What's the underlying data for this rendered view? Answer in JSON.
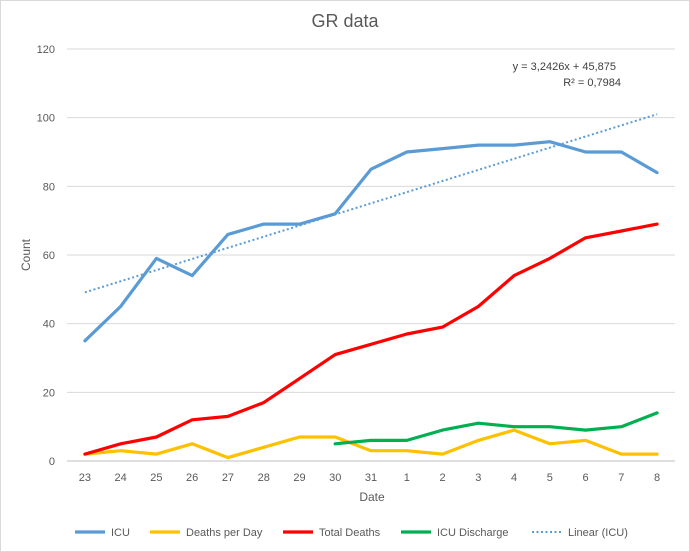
{
  "chart_data": {
    "type": "line",
    "title": "GR data",
    "xlabel": "Date",
    "ylabel": "Count",
    "categories": [
      "23",
      "24",
      "25",
      "26",
      "27",
      "28",
      "29",
      "30",
      "31",
      "1",
      "2",
      "3",
      "4",
      "5",
      "6",
      "7",
      "8"
    ],
    "ylim": [
      0,
      120
    ],
    "yticks": [
      0,
      20,
      40,
      60,
      80,
      100,
      120
    ],
    "grid": "horizontal",
    "legend_position": "bottom",
    "series": [
      {
        "name": "ICU",
        "color": "#5b9bd5",
        "values": [
          35,
          45,
          59,
          54,
          66,
          69,
          69,
          72,
          85,
          90,
          91,
          92,
          92,
          93,
          90,
          90,
          84
        ]
      },
      {
        "name": "Deaths per Day",
        "color": "#ffc000",
        "values": [
          2,
          3,
          2,
          5,
          1,
          4,
          7,
          7,
          3,
          3,
          2,
          6,
          9,
          5,
          6,
          2,
          2
        ]
      },
      {
        "name": "Total Deaths",
        "color": "#ff0000",
        "values": [
          2,
          5,
          7,
          12,
          13,
          17,
          24,
          31,
          34,
          37,
          39,
          45,
          54,
          59,
          65,
          67,
          69
        ]
      },
      {
        "name": "ICU Discharge",
        "color": "#00b050",
        "values": [
          null,
          null,
          null,
          null,
          null,
          null,
          null,
          5,
          6,
          6,
          9,
          11,
          10,
          10,
          9,
          10,
          14
        ]
      }
    ],
    "trendline": {
      "name": "Linear (ICU)",
      "color": "#5b9bd5",
      "style": "dotted",
      "slope": 3.2426,
      "intercept": 45.875,
      "equation": "y = 3,2426x + 45,875",
      "r_squared": "R² = 0,7984"
    }
  }
}
